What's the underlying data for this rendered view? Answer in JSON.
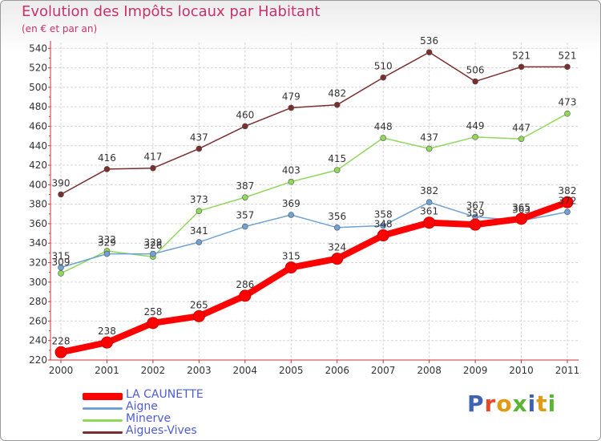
{
  "title": "Evolution des Impôts locaux par Habitant",
  "subtitle": "(en € et par an)",
  "brand": {
    "text": "Proxiti",
    "letter_colors": [
      "#3f63b3",
      "#e64a2b",
      "#e09a16",
      "#5ab532",
      "#3f63b3",
      "#e09a16",
      "#5ab532"
    ]
  },
  "chart_data": {
    "type": "line",
    "x": [
      "2000",
      "2001",
      "2002",
      "2003",
      "2004",
      "2005",
      "2006",
      "2007",
      "2008",
      "2009",
      "2010",
      "2011"
    ],
    "y_ticks": [
      220,
      240,
      260,
      280,
      300,
      320,
      340,
      360,
      380,
      400,
      420,
      440,
      460,
      480,
      500,
      520,
      540
    ],
    "ylim": [
      220,
      546
    ],
    "grid": true,
    "legend_position": "bottom-left",
    "series": [
      {
        "name": "LA CAUNETTE",
        "color": "#ff0000",
        "values": [
          228,
          238,
          258,
          265,
          286,
          315,
          324,
          348,
          361,
          359,
          365,
          382
        ],
        "labels": [
          "228",
          "238",
          "258",
          "265",
          "286",
          "315",
          "324",
          "348",
          "361",
          "359",
          "365",
          "382"
        ]
      },
      {
        "name": "Aigne",
        "color": "#6fa1d4",
        "values": [
          315,
          329,
          329,
          341,
          357,
          369,
          356,
          358,
          382,
          367,
          363,
          372
        ],
        "labels": [
          "315",
          "329",
          "329",
          "341",
          "357",
          "369",
          "356",
          "358",
          "382",
          "367",
          "363",
          "372"
        ]
      },
      {
        "name": "Minerve",
        "color": "#8fd85a",
        "values": [
          309,
          332,
          326,
          373,
          387,
          403,
          415,
          448,
          437,
          449,
          447,
          473
        ],
        "labels": [
          "309",
          "332",
          "326",
          "373",
          "387",
          "403",
          "415",
          "448",
          "437",
          "449",
          "447",
          "473"
        ]
      },
      {
        "name": "Aigues-Vives",
        "color": "#7a2e2e",
        "values": [
          390,
          416,
          417,
          437,
          460,
          479,
          482,
          510,
          536,
          506,
          521,
          521
        ],
        "labels": [
          "390",
          "416",
          "417",
          "437",
          "460",
          "479",
          "482",
          "510",
          "536",
          "506",
          "521",
          "521"
        ]
      }
    ]
  }
}
